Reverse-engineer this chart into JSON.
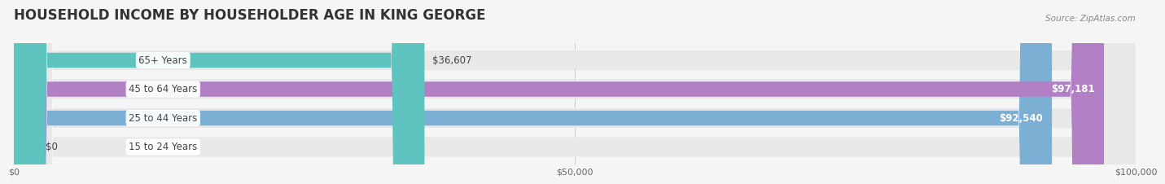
{
  "title": "HOUSEHOLD INCOME BY HOUSEHOLDER AGE IN KING GEORGE",
  "source": "Source: ZipAtlas.com",
  "categories": [
    "15 to 24 Years",
    "25 to 44 Years",
    "45 to 64 Years",
    "65+ Years"
  ],
  "values": [
    0,
    92540,
    97181,
    36607
  ],
  "bar_colors": [
    "#f4a0a8",
    "#7bafd4",
    "#b07fc4",
    "#5fc4c0"
  ],
  "bar_bg_color": "#e8e8e8",
  "xlim": [
    0,
    100000
  ],
  "xticks": [
    0,
    50000,
    100000
  ],
  "xtick_labels": [
    "$0",
    "$50,000",
    "$100,000"
  ],
  "value_labels": [
    "$0",
    "$92,540",
    "$97,181",
    "$36,607"
  ],
  "title_fontsize": 12,
  "label_fontsize": 8.5,
  "tick_fontsize": 8,
  "source_fontsize": 7.5,
  "background_color": "#f5f5f5",
  "label_text_color": "#444444"
}
